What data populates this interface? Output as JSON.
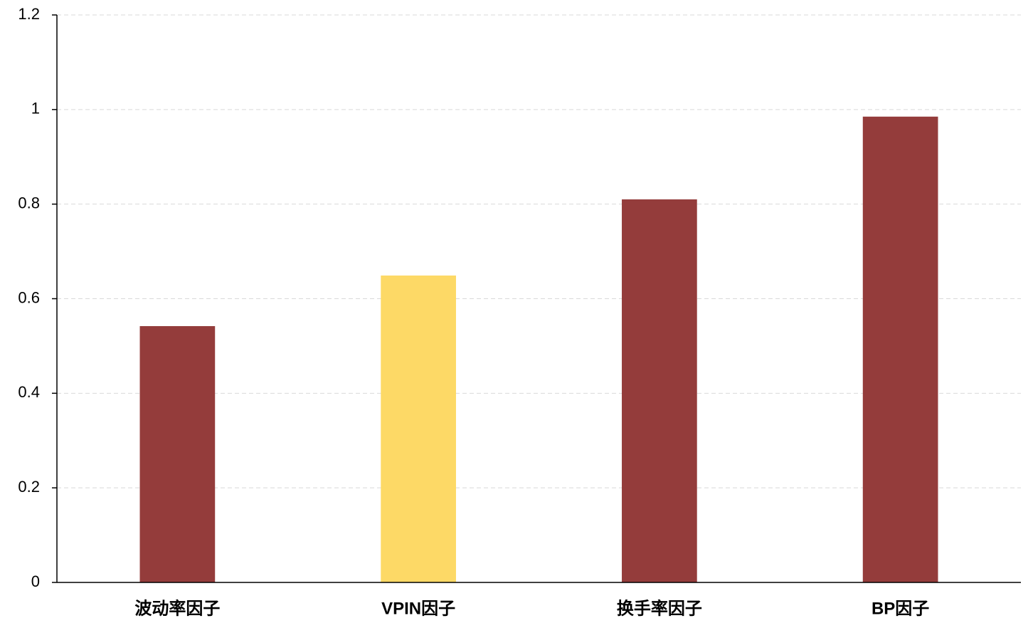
{
  "chart_data": {
    "type": "bar",
    "categories": [
      "波动率因子",
      "VPIN因子",
      "换手率因子",
      "BP因子"
    ],
    "values": [
      0.542,
      0.649,
      0.81,
      0.985
    ],
    "colors": [
      "#943c3b",
      "#fdd966",
      "#943c3b",
      "#943c3b"
    ],
    "ylim": [
      0,
      1.2
    ],
    "yticks": [
      0,
      0.2,
      0.4,
      0.6,
      0.8,
      1,
      1.2
    ],
    "grid": true
  }
}
